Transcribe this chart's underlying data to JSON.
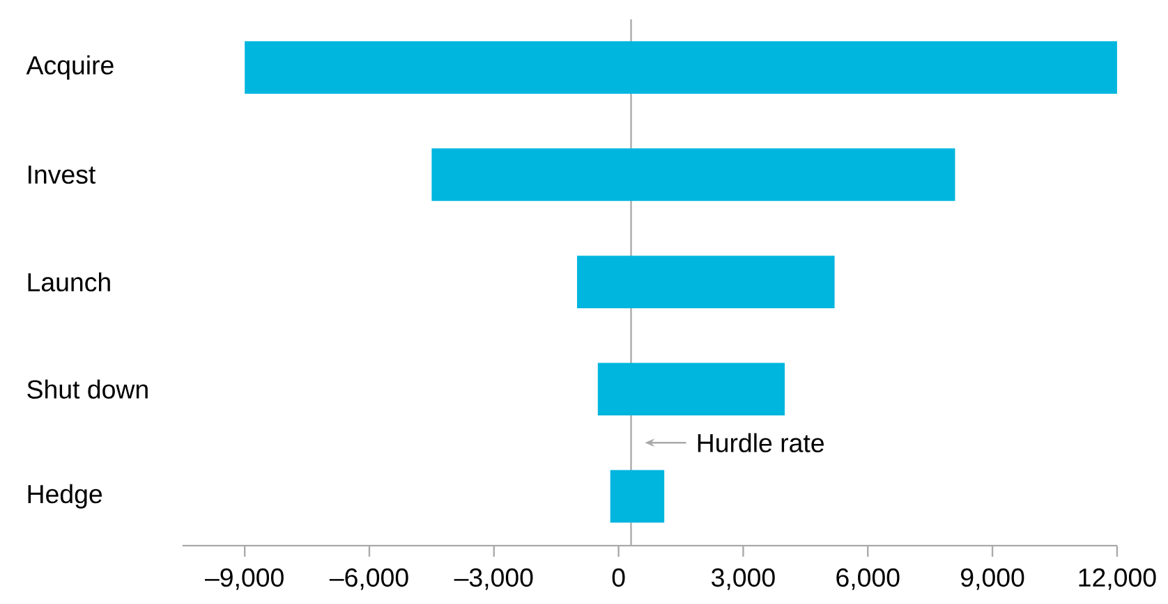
{
  "chart_data": {
    "type": "bar",
    "orientation": "horizontal",
    "categories": [
      "Acquire",
      "Invest",
      "Launch",
      "Shut down",
      "Hedge"
    ],
    "base": [
      -9000,
      -4500,
      -1000,
      -500,
      -200
    ],
    "values": [
      21000,
      12600,
      6200,
      4500,
      1300
    ],
    "color": "#00b5de",
    "xlim": [
      -10500,
      12000
    ],
    "xticks": [
      {
        "value": -9000,
        "label": "–9,000"
      },
      {
        "value": -6000,
        "label": "–6,000"
      },
      {
        "value": -3000,
        "label": "–3,000"
      },
      0,
      {
        "value": 3000,
        "label": "3,000"
      },
      {
        "value": 6000,
        "label": "6,000"
      },
      {
        "value": 9000,
        "label": "9,000"
      },
      {
        "value": 12000,
        "label": "12,000"
      }
    ],
    "ref_lines": [
      {
        "axis": "x",
        "value": 300,
        "label": "Hurdle rate",
        "color": "#aaaaaa"
      }
    ]
  }
}
